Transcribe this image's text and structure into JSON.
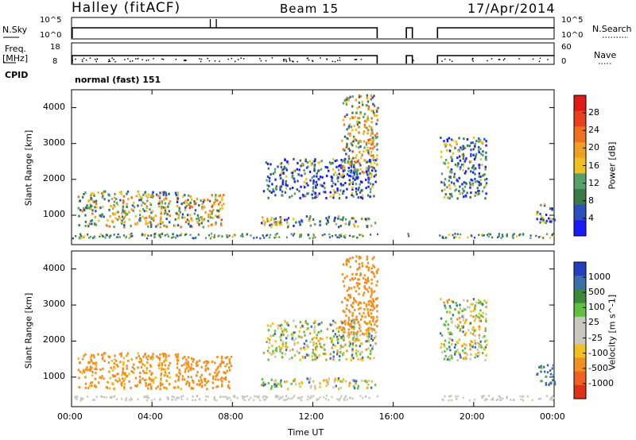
{
  "header": {
    "station": "Halley (fitACF)",
    "beam": "Beam 15",
    "date": "17/Apr/2014"
  },
  "panels": {
    "nsky_label": "N.Sky",
    "nsky_ticks": [
      "10^5",
      "10^0"
    ],
    "nsearch_label": "N.Search",
    "nsearch_ticks": [
      "10^5",
      "10^0"
    ],
    "freq_label": "Freq.",
    "freq_unit": "[MHz]",
    "freq_ticks": [
      "18",
      "8"
    ],
    "nave_label": "Nave",
    "nave_ticks": [
      "60",
      "0"
    ],
    "cpid_label": "CPID",
    "cpid_value": "normal (fast) 151"
  },
  "colors": {
    "power_scale": [
      "#1a1aff",
      "#2b4fbd",
      "#3a7a48",
      "#58a06a",
      "#f0c020",
      "#f0a020",
      "#f07020",
      "#e8401e",
      "#e01818"
    ],
    "velocity_scale": [
      "#2040c0",
      "#3a6fa8",
      "#3a8a3a",
      "#60c040",
      "#c8c8c0",
      "#c8c8c0",
      "#f0c020",
      "#f09020",
      "#f06020",
      "#e03018"
    ]
  },
  "chart_data": [
    {
      "type": "heatmap",
      "title": "",
      "xlabel": "",
      "ylabel": "Slant Range [km]",
      "xlim": [
        "00:00",
        "24:00"
      ],
      "ylim": [
        180,
        4500
      ],
      "y_ticks": [
        "1000",
        "2000",
        "3000",
        "4000"
      ],
      "colorbar": {
        "label": "Power [dB]",
        "ticks": [
          "28",
          "24",
          "20",
          "16",
          "12",
          "8",
          "4"
        ]
      },
      "echo_regions": [
        {
          "t_start": 0.3,
          "t_end": 5.8,
          "r_start": 700,
          "r_end": 1700,
          "level": 12
        },
        {
          "t_start": 5.6,
          "t_end": 7.6,
          "r_start": 700,
          "r_end": 1600,
          "level": 14
        },
        {
          "t_start": 9.3,
          "t_end": 15.1,
          "r_start": 700,
          "r_end": 1000,
          "level": 10
        },
        {
          "t_start": 9.5,
          "t_end": 15.1,
          "r_start": 1500,
          "r_end": 2600,
          "level": 6
        },
        {
          "t_start": 13.4,
          "t_end": 15.2,
          "r_start": 2200,
          "r_end": 4400,
          "level": 14
        },
        {
          "t_start": 18.3,
          "t_end": 20.6,
          "r_start": 1500,
          "r_end": 3200,
          "level": 8
        },
        {
          "t_start": 23.1,
          "t_end": 24.0,
          "r_start": 800,
          "r_end": 1400,
          "level": 6
        }
      ]
    },
    {
      "type": "heatmap",
      "title": "",
      "xlabel": "Time UT",
      "ylabel": "Slant Range [km]",
      "xlim": [
        "00:00",
        "24:00"
      ],
      "ylim": [
        180,
        4500
      ],
      "x_ticks": [
        "00:00",
        "04:00",
        "08:00",
        "12:00",
        "16:00",
        "20:00",
        "00:00"
      ],
      "y_ticks": [
        "1000",
        "2000",
        "3000",
        "4000"
      ],
      "colorbar": {
        "label": "Velocity [m s^-1]",
        "ticks": [
          "1000",
          "500",
          "100",
          "25",
          "-25",
          "-100",
          "-500",
          "-1000"
        ]
      },
      "echo_regions": [
        {
          "t_start": 0.3,
          "t_end": 5.8,
          "r_start": 700,
          "r_end": 1700,
          "level": -200
        },
        {
          "t_start": 5.6,
          "t_end": 8.0,
          "r_start": 700,
          "r_end": 1600,
          "level": -300
        },
        {
          "t_start": 9.3,
          "t_end": 15.1,
          "r_start": 700,
          "r_end": 1000,
          "level": 0
        },
        {
          "t_start": 9.5,
          "t_end": 15.1,
          "r_start": 1500,
          "r_end": 2600,
          "level": 0
        },
        {
          "t_start": 13.4,
          "t_end": 15.2,
          "r_start": 2200,
          "r_end": 4400,
          "level": -300
        },
        {
          "t_start": 18.3,
          "t_end": 20.6,
          "r_start": 1500,
          "r_end": 3200,
          "level": 0
        },
        {
          "t_start": 23.1,
          "t_end": 24.0,
          "r_start": 800,
          "r_end": 1400,
          "level": 200
        }
      ]
    }
  ]
}
